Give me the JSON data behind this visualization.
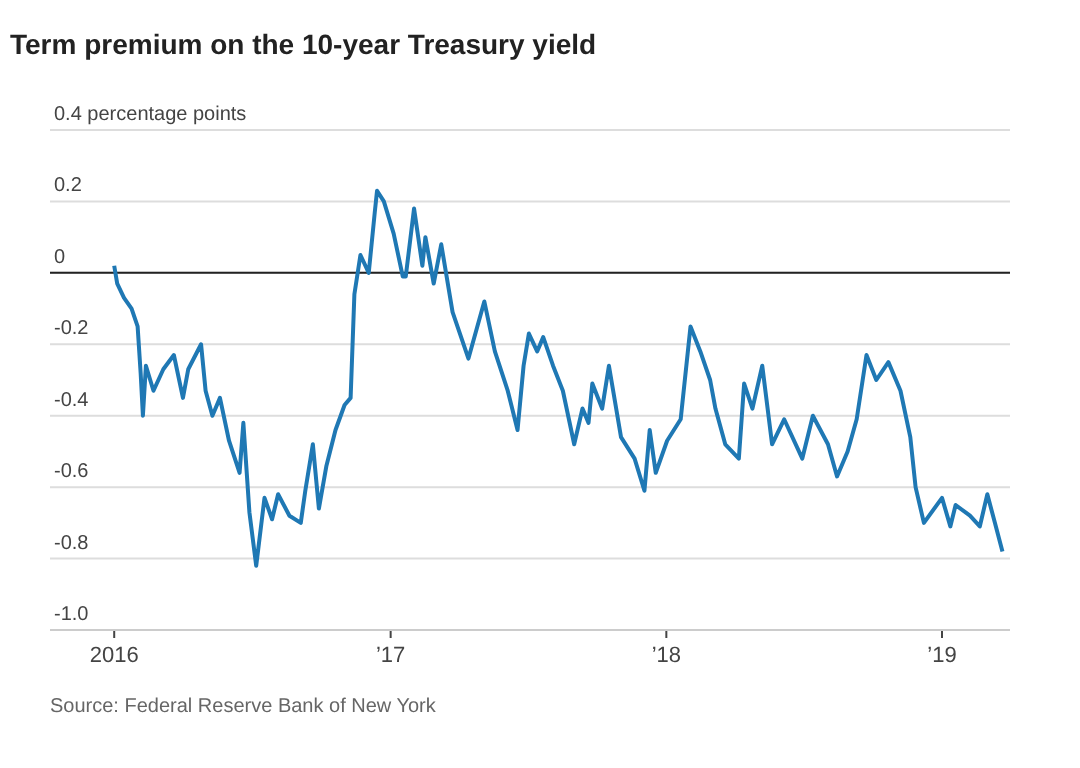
{
  "chart_data": {
    "type": "line",
    "title": "Term premium on the 10-year Treasury yield",
    "annotations": [
      "Source: Federal Reserve Bank of New York"
    ],
    "xlim": [
      "2015-10-08",
      "2019-04-01"
    ],
    "xticks": [
      {
        "value": "2016-01-01",
        "label": "2016"
      },
      {
        "value": "2017-01-01",
        "label": "’17"
      },
      {
        "value": "2018-01-01",
        "label": "’18"
      },
      {
        "value": "2019-01-01",
        "label": "’19"
      }
    ],
    "ylim": [
      -1.0,
      0.4
    ],
    "yticks": [
      {
        "value": 0.4,
        "label": "0.4 percentage points"
      },
      0.2,
      0,
      -0.2,
      -0.4,
      -0.6,
      -0.8,
      {
        "value": -1.0,
        "label": "-1.0"
      }
    ],
    "grid": "y",
    "ref_lines": [
      {
        "axis": "y",
        "value": 0,
        "color": "#222222"
      }
    ],
    "series": [
      {
        "color": "#1f78b4",
        "x": [
          "2016-01-01",
          "2016-01-05",
          "2016-01-14",
          "2016-01-24",
          "2016-02-01",
          "2016-02-05",
          "2016-02-08",
          "2016-02-12",
          "2016-02-22",
          "2016-03-06",
          "2016-03-20",
          "2016-04-01",
          "2016-04-08",
          "2016-04-25",
          "2016-05-01",
          "2016-05-10",
          "2016-05-20",
          "2016-06-01",
          "2016-06-15",
          "2016-06-20",
          "2016-06-28",
          "2016-07-07",
          "2016-07-18",
          "2016-07-28",
          "2016-08-05",
          "2016-08-20",
          "2016-09-04",
          "2016-09-10",
          "2016-09-20",
          "2016-09-28",
          "2016-10-08",
          "2016-10-20",
          "2016-11-01",
          "2016-11-09",
          "2016-11-14",
          "2016-11-22",
          "2016-12-03",
          "2016-12-11",
          "2016-12-14",
          "2016-12-23",
          "2017-01-05",
          "2017-01-17",
          "2017-01-21",
          "2017-02-01",
          "2017-02-12",
          "2017-02-16",
          "2017-02-27",
          "2017-03-09",
          "2017-03-24",
          "2017-04-14",
          "2017-05-05",
          "2017-05-19",
          "2017-06-05",
          "2017-06-18",
          "2017-06-26",
          "2017-07-03",
          "2017-07-14",
          "2017-07-22",
          "2017-08-04",
          "2017-08-17",
          "2017-09-01",
          "2017-09-12",
          "2017-09-20",
          "2017-09-25",
          "2017-10-08",
          "2017-10-17",
          "2017-11-02",
          "2017-11-20",
          "2017-12-03",
          "2017-12-10",
          "2017-12-18",
          "2018-01-02",
          "2018-01-20",
          "2018-02-02",
          "2018-02-15",
          "2018-02-28",
          "2018-03-07",
          "2018-03-20",
          "2018-04-07",
          "2018-04-14",
          "2018-04-25",
          "2018-05-08",
          "2018-05-21",
          "2018-06-06",
          "2018-06-30",
          "2018-07-14",
          "2018-08-03",
          "2018-08-15",
          "2018-08-29",
          "2018-09-10",
          "2018-09-23",
          "2018-10-06",
          "2018-10-22",
          "2018-11-07",
          "2018-11-20",
          "2018-11-27",
          "2018-12-08",
          "2019-01-01",
          "2019-01-12",
          "2019-01-19",
          "2019-02-07",
          "2019-02-20",
          "2019-03-02",
          "2019-03-12",
          "2019-03-22"
        ],
        "values": [
          0.02,
          -0.03,
          -0.07,
          -0.1,
          -0.15,
          -0.28,
          -0.4,
          -0.26,
          -0.33,
          -0.27,
          -0.23,
          -0.35,
          -0.27,
          -0.2,
          -0.33,
          -0.4,
          -0.35,
          -0.47,
          -0.56,
          -0.42,
          -0.67,
          -0.82,
          -0.63,
          -0.69,
          -0.62,
          -0.68,
          -0.7,
          -0.61,
          -0.48,
          -0.66,
          -0.54,
          -0.44,
          -0.37,
          -0.35,
          -0.06,
          0.05,
          0,
          0.17,
          0.23,
          0.2,
          0.11,
          -0.01,
          -0.01,
          0.18,
          0.02,
          0.1,
          -0.03,
          0.08,
          -0.11,
          -0.24,
          -0.08,
          -0.22,
          -0.33,
          -0.44,
          -0.26,
          -0.17,
          -0.22,
          -0.18,
          -0.26,
          -0.33,
          -0.48,
          -0.38,
          -0.42,
          -0.31,
          -0.38,
          -0.26,
          -0.46,
          -0.52,
          -0.61,
          -0.44,
          -0.56,
          -0.47,
          -0.41,
          -0.15,
          -0.22,
          -0.3,
          -0.38,
          -0.48,
          -0.52,
          -0.31,
          -0.38,
          -0.26,
          -0.48,
          -0.41,
          -0.52,
          -0.4,
          -0.48,
          -0.57,
          -0.5,
          -0.41,
          -0.23,
          -0.3,
          -0.25,
          -0.33,
          -0.46,
          -0.6,
          -0.7,
          -0.63,
          -0.71,
          -0.65,
          -0.68,
          -0.71,
          -0.62,
          -0.7,
          -0.78
        ]
      }
    ]
  }
}
